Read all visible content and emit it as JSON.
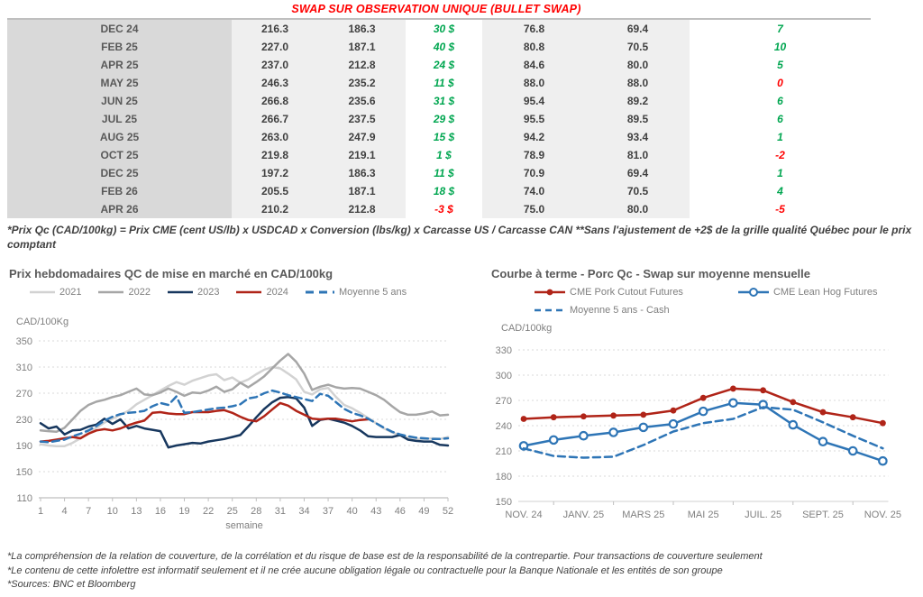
{
  "header": {
    "title": "SWAP SUR OBSERVATION UNIQUE (BULLET SWAP)"
  },
  "colors": {
    "positive_green": "#00a650",
    "negative_red": "#ff0000",
    "title_red": "#ff0000",
    "grid_gray": "#d9d9d9",
    "axis_gray": "#bfbfbf",
    "text_gray": "#595959"
  },
  "table": {
    "rows": [
      {
        "month": "DEC 24",
        "cad_swap": "216.3",
        "cad_cash": "186.3",
        "cad_diff": "30 $",
        "us_swap": "76.8",
        "us_cash": "69.4",
        "us_diff": "7"
      },
      {
        "month": "FEB 25",
        "cad_swap": "227.0",
        "cad_cash": "187.1",
        "cad_diff": "40 $",
        "us_swap": "80.8",
        "us_cash": "70.5",
        "us_diff": "10"
      },
      {
        "month": "APR 25",
        "cad_swap": "237.0",
        "cad_cash": "212.8",
        "cad_diff": "24 $",
        "us_swap": "84.6",
        "us_cash": "80.0",
        "us_diff": "5"
      },
      {
        "month": "MAY 25",
        "cad_swap": "246.3",
        "cad_cash": "235.2",
        "cad_diff": "11 $",
        "us_swap": "88.0",
        "us_cash": "88.0",
        "us_diff": "0"
      },
      {
        "month": "JUN 25",
        "cad_swap": "266.8",
        "cad_cash": "235.6",
        "cad_diff": "31 $",
        "us_swap": "95.4",
        "us_cash": "89.2",
        "us_diff": "6"
      },
      {
        "month": "JUL 25",
        "cad_swap": "266.7",
        "cad_cash": "237.5",
        "cad_diff": "29 $",
        "us_swap": "95.5",
        "us_cash": "89.5",
        "us_diff": "6"
      },
      {
        "month": "AUG 25",
        "cad_swap": "263.0",
        "cad_cash": "247.9",
        "cad_diff": "15 $",
        "us_swap": "94.2",
        "us_cash": "93.4",
        "us_diff": "1"
      },
      {
        "month": "OCT 25",
        "cad_swap": "219.8",
        "cad_cash": "219.1",
        "cad_diff": "1 $",
        "us_swap": "78.9",
        "us_cash": "81.0",
        "us_diff": "-2"
      },
      {
        "month": "DEC 25",
        "cad_swap": "197.2",
        "cad_cash": "186.3",
        "cad_diff": "11 $",
        "us_swap": "70.9",
        "us_cash": "69.4",
        "us_diff": "1"
      },
      {
        "month": "FEB 26",
        "cad_swap": "205.5",
        "cad_cash": "187.1",
        "cad_diff": "18 $",
        "us_swap": "74.0",
        "us_cash": "70.5",
        "us_diff": "4"
      },
      {
        "month": "APR 26",
        "cad_swap": "210.2",
        "cad_cash": "212.8",
        "cad_diff": "-3 $",
        "us_swap": "75.0",
        "us_cash": "80.0",
        "us_diff": "-5"
      }
    ]
  },
  "table_footnote": "*Prix Qc (CAD/100kg) = Prix CME (cent US/lb) x USDCAD x Conversion (lbs/kg) x Carcasse US / Carcasse CAN **Sans l'ajustement de +2$ de la grille qualité Québec pour le prix comptant",
  "chart_data": [
    {
      "type": "line",
      "title": "Prix hebdomadaires QC de mise en marché en CAD/100kg",
      "ylabel": "CAD/100Kg",
      "xlabel": "semaine",
      "ylim": [
        110,
        350
      ],
      "y_ticks": [
        110,
        150,
        190,
        230,
        270,
        310,
        350
      ],
      "x_ticks": [
        1,
        4,
        7,
        10,
        13,
        16,
        19,
        22,
        25,
        28,
        31,
        34,
        37,
        40,
        43,
        46,
        49,
        52
      ],
      "grid": true,
      "legend_position": "top",
      "series": [
        {
          "name": "2021",
          "color": "#d2d2d2",
          "style": "solid",
          "values": [
            192,
            190,
            189,
            189,
            194,
            201,
            210,
            217,
            225,
            231,
            237,
            243,
            253,
            260,
            267,
            274,
            281,
            287,
            283,
            289,
            293,
            297,
            299,
            290,
            294,
            286,
            291,
            299,
            306,
            310,
            308,
            300,
            291,
            272,
            268,
            276,
            278,
            264,
            252,
            247,
            240,
            232,
            224,
            216,
            210,
            206,
            202,
            200,
            200,
            201,
            200,
            203
          ]
        },
        {
          "name": "2022",
          "color": "#a6a6a6",
          "style": "solid",
          "values": [
            213,
            212,
            211,
            217,
            230,
            243,
            252,
            257,
            260,
            264,
            267,
            272,
            277,
            268,
            267,
            271,
            277,
            272,
            266,
            271,
            270,
            274,
            280,
            272,
            276,
            286,
            279,
            287,
            296,
            308,
            320,
            330,
            318,
            300,
            275,
            280,
            283,
            279,
            277,
            278,
            277,
            272,
            267,
            260,
            250,
            241,
            237,
            237,
            239,
            242,
            236,
            237
          ]
        },
        {
          "name": "2023",
          "color": "#17375e",
          "style": "solid",
          "values": [
            224,
            216,
            219,
            207,
            213,
            214,
            219,
            222,
            231,
            223,
            230,
            216,
            220,
            216,
            214,
            212,
            187,
            190,
            192,
            194,
            193,
            196,
            198,
            200,
            203,
            206,
            219,
            233,
            246,
            256,
            263,
            264,
            262,
            248,
            220,
            229,
            231,
            228,
            225,
            220,
            213,
            204,
            203,
            203,
            203,
            206,
            199,
            197,
            196,
            196,
            191,
            190
          ]
        },
        {
          "name": "2024",
          "color": "#b02418",
          "style": "solid",
          "values": [
            196,
            197,
            199,
            201,
            203,
            201,
            208,
            213,
            215,
            213,
            216,
            221,
            225,
            228,
            240,
            241,
            239,
            238,
            238,
            241,
            241,
            241,
            243,
            244,
            240,
            234,
            229,
            227,
            235,
            245,
            255,
            251,
            243,
            237,
            231,
            230,
            231,
            231,
            229,
            227,
            229,
            230
          ]
        },
        {
          "name": "Moyenne 5 ans",
          "color": "#2e75b6",
          "style": "dashed",
          "values": [
            196,
            195,
            197,
            199,
            204,
            208,
            213,
            220,
            228,
            234,
            238,
            240,
            241,
            243,
            250,
            255,
            252,
            265,
            240,
            241,
            243,
            245,
            247,
            248,
            250,
            253,
            262,
            264,
            270,
            274,
            271,
            267,
            264,
            261,
            258,
            269,
            266,
            256,
            246,
            240,
            236,
            231,
            224,
            217,
            211,
            207,
            204,
            202,
            201,
            200,
            200,
            201
          ]
        }
      ]
    },
    {
      "type": "line",
      "title": "Courbe à terme - Porc Qc - Swap sur moyenne mensuelle",
      "ylabel": "CAD/100kg",
      "xlabel": "",
      "ylim": [
        150,
        330
      ],
      "y_ticks": [
        150,
        180,
        210,
        240,
        270,
        300,
        330
      ],
      "x_labels": [
        "NOV. 24",
        "JANV. 25",
        "MARS 25",
        "MAI 25",
        "JUIL. 25",
        "SEPT. 25",
        "NOV. 25"
      ],
      "grid": true,
      "legend_position": "top",
      "series": [
        {
          "name": "CME Pork Cutout Futures",
          "color": "#b02418",
          "style": "solid",
          "marker": "filled",
          "values": [
            248,
            250,
            251,
            252,
            253,
            258,
            273,
            284,
            282,
            268,
            256,
            250,
            243
          ]
        },
        {
          "name": "CME Lean Hog Futures",
          "color": "#2e75b6",
          "style": "solid",
          "marker": "open",
          "values": [
            216,
            223,
            228,
            232,
            238,
            242,
            257,
            267,
            265,
            241,
            221,
            210,
            198
          ]
        },
        {
          "name": "Moyenne 5 ans - Cash",
          "color": "#2e75b6",
          "style": "dashed",
          "marker": "none",
          "values": [
            213,
            204,
            202,
            203,
            217,
            233,
            243,
            248,
            262,
            259,
            244,
            228,
            213
          ]
        }
      ]
    }
  ],
  "footer": {
    "lines": [
      "*La compréhension de la relation de couverture, de la corrélation et du risque de base est de la responsabilité de la contrepartie. Pour transactions de couverture seulement",
      "*Le contenu de cette infolettre est informatif seulement et il ne crée aucune obligation légale ou contractuelle pour la Banque Nationale et les entités de son groupe",
      "*Sources: BNC et Bloomberg"
    ]
  }
}
